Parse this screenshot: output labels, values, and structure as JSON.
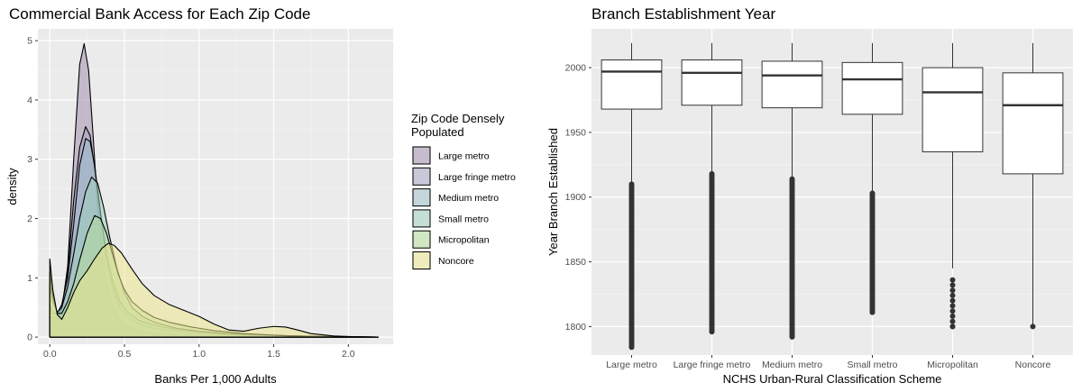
{
  "chart_data": [
    {
      "type": "area",
      "title": "Commercial Bank Access for Each Zip Code",
      "xlabel": "Banks Per 1,000 Adults",
      "ylabel": "density",
      "xlim": [
        -0.08,
        2.3
      ],
      "ylim": [
        -0.12,
        5.2
      ],
      "xticks": [
        "0.0",
        "0.5",
        "1.0",
        "1.5",
        "2.0"
      ],
      "xtick_values": [
        0,
        0.5,
        1.0,
        1.5,
        2.0
      ],
      "yticks": [
        "0",
        "1",
        "2",
        "3",
        "4",
        "5"
      ],
      "ytick_values": [
        0,
        1,
        2,
        3,
        4,
        5
      ],
      "grid": true,
      "legend": {
        "title_lines": [
          "Zip Code Densely",
          " Populated"
        ],
        "placement": "right"
      },
      "series": [
        {
          "name": "Large metro",
          "color": "#a38fae",
          "x": [
            0,
            0.02,
            0.05,
            0.08,
            0.12,
            0.16,
            0.2,
            0.23,
            0.26,
            0.29,
            0.32,
            0.36,
            0.4,
            0.45,
            0.5,
            0.6,
            0.7,
            0.85,
            1.0,
            1.2,
            1.5,
            1.8,
            2.2
          ],
          "y": [
            0.3,
            0.28,
            0.3,
            0.45,
            1.2,
            3.0,
            4.6,
            4.95,
            4.5,
            3.4,
            2.2,
            1.2,
            0.65,
            0.35,
            0.2,
            0.1,
            0.06,
            0.04,
            0.03,
            0.02,
            0.01,
            0.005,
            0
          ]
        },
        {
          "name": "Large fringe metro",
          "color": "#a5a6c4",
          "x": [
            0,
            0.02,
            0.05,
            0.08,
            0.12,
            0.16,
            0.2,
            0.24,
            0.27,
            0.3,
            0.34,
            0.38,
            0.42,
            0.47,
            0.52,
            0.6,
            0.7,
            0.85,
            1.0,
            1.2,
            1.5,
            1.8,
            2.2
          ],
          "y": [
            0.35,
            0.32,
            0.35,
            0.5,
            1.1,
            2.3,
            3.2,
            3.55,
            3.4,
            2.85,
            2.0,
            1.3,
            0.85,
            0.5,
            0.35,
            0.22,
            0.15,
            0.1,
            0.07,
            0.04,
            0.02,
            0.01,
            0
          ]
        },
        {
          "name": "Medium metro",
          "color": "#9ebecb",
          "x": [
            0,
            0.02,
            0.05,
            0.08,
            0.12,
            0.16,
            0.2,
            0.24,
            0.27,
            0.3,
            0.34,
            0.38,
            0.42,
            0.47,
            0.52,
            0.6,
            0.7,
            0.85,
            1.0,
            1.2,
            1.5,
            1.8,
            2.2
          ],
          "y": [
            0.55,
            0.4,
            0.4,
            0.55,
            1.0,
            1.9,
            2.9,
            3.35,
            3.3,
            2.9,
            2.1,
            1.4,
            0.95,
            0.6,
            0.42,
            0.28,
            0.2,
            0.13,
            0.09,
            0.05,
            0.03,
            0.01,
            0
          ]
        },
        {
          "name": "Small metro",
          "color": "#9fcfbd",
          "x": [
            0,
            0.02,
            0.05,
            0.08,
            0.12,
            0.16,
            0.2,
            0.24,
            0.28,
            0.32,
            0.36,
            0.4,
            0.45,
            0.5,
            0.55,
            0.62,
            0.7,
            0.85,
            1.0,
            1.2,
            1.5,
            1.8,
            2.2
          ],
          "y": [
            0.9,
            0.6,
            0.42,
            0.5,
            0.85,
            1.4,
            2.0,
            2.45,
            2.7,
            2.6,
            2.2,
            1.7,
            1.15,
            0.75,
            0.5,
            0.35,
            0.25,
            0.15,
            0.1,
            0.06,
            0.03,
            0.01,
            0
          ]
        },
        {
          "name": "Micropolitan",
          "color": "#b6dd9c",
          "x": [
            0,
            0.02,
            0.05,
            0.08,
            0.12,
            0.16,
            0.2,
            0.25,
            0.3,
            0.34,
            0.38,
            0.42,
            0.46,
            0.5,
            0.55,
            0.62,
            0.7,
            0.8,
            0.95,
            1.1,
            1.3,
            1.6,
            2.2
          ],
          "y": [
            1.1,
            0.7,
            0.4,
            0.4,
            0.6,
            0.9,
            1.3,
            1.75,
            2.05,
            2.0,
            1.75,
            1.4,
            1.05,
            0.8,
            0.6,
            0.45,
            0.33,
            0.25,
            0.17,
            0.11,
            0.06,
            0.02,
            0
          ]
        },
        {
          "name": "Noncore",
          "color": "#ece58e",
          "x": [
            0,
            0.02,
            0.05,
            0.08,
            0.12,
            0.16,
            0.2,
            0.25,
            0.3,
            0.35,
            0.39,
            0.43,
            0.48,
            0.55,
            0.62,
            0.7,
            0.8,
            0.9,
            1.0,
            1.1,
            1.2,
            1.3,
            1.4,
            1.5,
            1.58,
            1.66,
            1.75,
            1.9,
            2.05,
            2.2
          ],
          "y": [
            1.32,
            0.8,
            0.38,
            0.3,
            0.5,
            0.75,
            0.95,
            1.12,
            1.32,
            1.5,
            1.58,
            1.55,
            1.42,
            1.15,
            0.9,
            0.7,
            0.55,
            0.45,
            0.35,
            0.22,
            0.12,
            0.1,
            0.15,
            0.18,
            0.17,
            0.12,
            0.06,
            0.02,
            0.005,
            0
          ]
        }
      ]
    },
    {
      "type": "box",
      "title": "Branch Establishment Year",
      "xlabel": "NCHS Urban-Rural Classification Scheme",
      "ylabel": "Year Branch Established",
      "ylim": [
        1778,
        2030
      ],
      "yticks": [
        "1800",
        "1850",
        "1900",
        "1950",
        "2000"
      ],
      "ytick_values": [
        1800,
        1850,
        1900,
        1950,
        2000
      ],
      "grid": true,
      "categories": [
        "Large metro",
        "Large fringe metro",
        "Medium metro",
        "Small metro",
        "Micropolitan",
        "Noncore"
      ],
      "boxes": [
        {
          "whisker_low": 1911,
          "q1": 1968,
          "median": 1997,
          "q3": 2006,
          "whisker_high": 2019,
          "outlier_range": [
            1784,
            1910
          ]
        },
        {
          "whisker_low": 1918,
          "q1": 1971,
          "median": 1996,
          "q3": 2006,
          "whisker_high": 2019,
          "outlier_range": [
            1796,
            1918
          ]
        },
        {
          "whisker_low": 1914,
          "q1": 1969,
          "median": 1994,
          "q3": 2005,
          "whisker_high": 2019,
          "outlier_range": [
            1792,
            1914
          ]
        },
        {
          "whisker_low": 1903,
          "q1": 1964,
          "median": 1991,
          "q3": 2004,
          "whisker_high": 2019,
          "outlier_range": [
            1811,
            1903
          ]
        },
        {
          "whisker_low": 1845,
          "q1": 1935,
          "median": 1981,
          "q3": 2000,
          "whisker_high": 2019,
          "outlier_range": [
            1800,
            1836
          ]
        },
        {
          "whisker_low": 1800,
          "q1": 1918,
          "median": 1971,
          "q3": 1996,
          "whisker_high": 2019,
          "outlier_range": [
            1800,
            1800
          ]
        }
      ]
    }
  ]
}
